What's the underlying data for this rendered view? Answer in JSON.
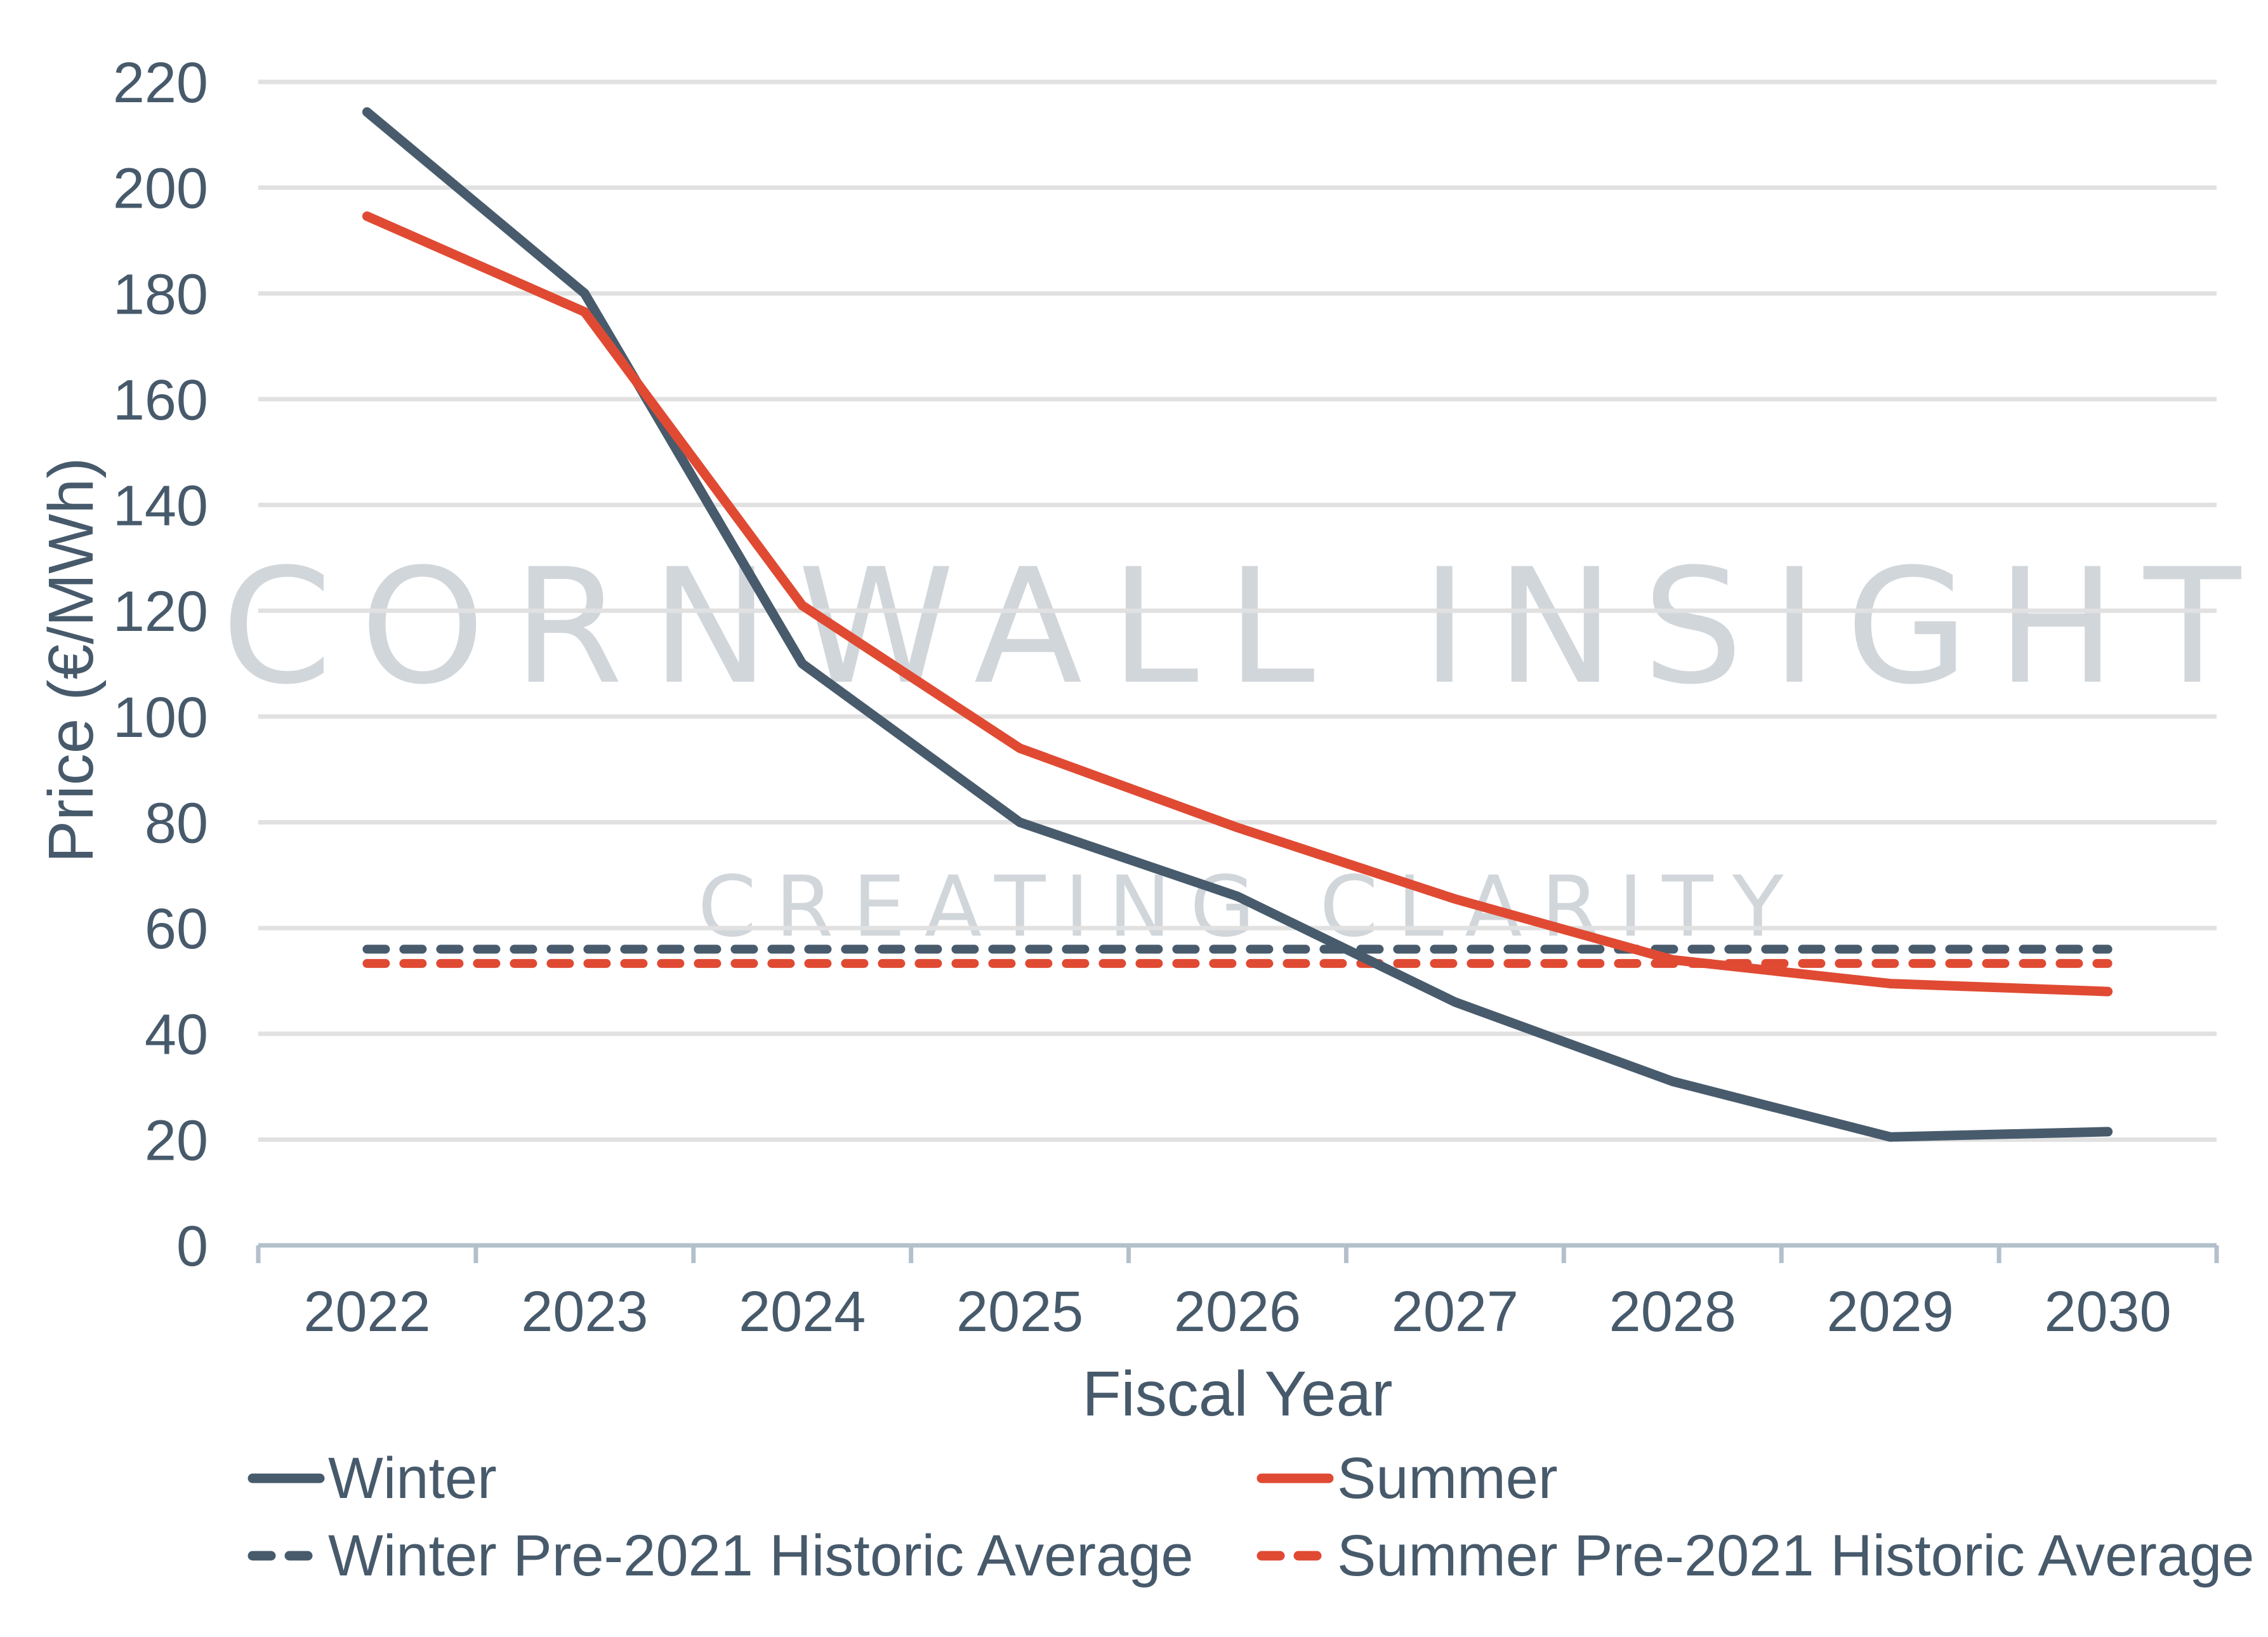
{
  "chart_data": {
    "type": "line",
    "title": "",
    "xlabel": "Fiscal Year",
    "ylabel": "Price (€/MWh)",
    "categories": [
      "2022",
      "2023",
      "2024",
      "2025",
      "2026",
      "2027",
      "2028",
      "2029",
      "2030"
    ],
    "ylim": [
      0,
      220
    ],
    "yticks": [
      0,
      20,
      40,
      60,
      80,
      100,
      120,
      140,
      160,
      180,
      200,
      220
    ],
    "grid": true,
    "legend_position": "bottom",
    "series": [
      {
        "name": "Winter",
        "style": "solid",
        "color": "#485b6c",
        "values": [
          214.3,
          180,
          110,
          80,
          66,
          46,
          31,
          20.5,
          21.5
        ]
      },
      {
        "name": "Summer",
        "style": "solid",
        "color": "#e04a33",
        "values": [
          194.6,
          176.5,
          121,
          94,
          79,
          65.5,
          54,
          49.5,
          48
        ]
      },
      {
        "name": "Winter Pre-2021 Historic Average",
        "style": "dashed",
        "color": "#485b6c",
        "values": [
          56,
          56,
          56,
          56,
          56,
          56,
          56,
          56,
          56
        ]
      },
      {
        "name": "Summer Pre-2021 Historic Average",
        "style": "dashed",
        "color": "#e04a33",
        "values": [
          53.3,
          53.3,
          53.3,
          53.3,
          53.3,
          53.3,
          53.3,
          53.3,
          53.3
        ]
      }
    ],
    "watermark": {
      "main": "CORNWALL INSIGHT",
      "sub": "CREATING CLARITY"
    }
  },
  "colors": {
    "text": "#475a6b",
    "grid": "#e1e1e1",
    "axis": "#b3c0cc",
    "watermark": "#d1d6db"
  }
}
